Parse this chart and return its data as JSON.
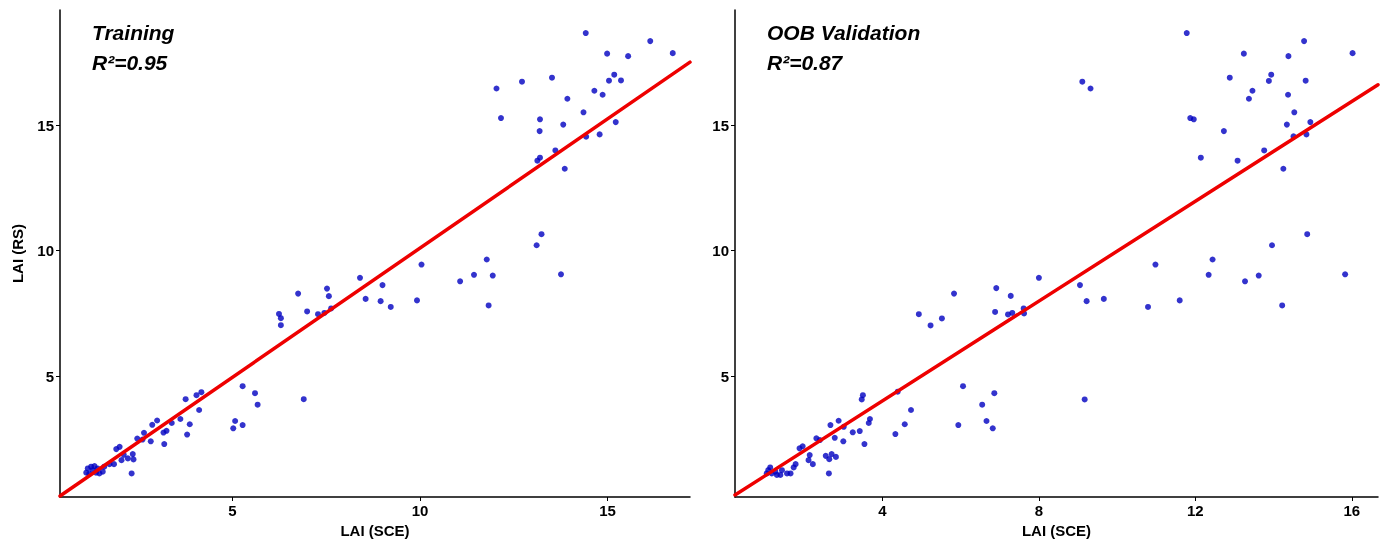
{
  "chart_data": [
    {
      "type": "scatter",
      "annotations": [
        "Training",
        "R²=0.95"
      ],
      "xlabel": "LAI (SCE)",
      "ylabel": "LAI (RS)",
      "xlim": [
        0.4,
        17.2
      ],
      "ylim": [
        0.18,
        19.6
      ],
      "xticks": [
        5,
        10,
        15
      ],
      "yticks": [
        5,
        10,
        15
      ],
      "grid": false,
      "series": [
        {
          "color": "#0000c0",
          "marker": "circle",
          "x": [
            14.42,
            16.14,
            14.99,
            15.55,
            16.74,
            12.04,
            12.72,
            13.52,
            15.18,
            15.04,
            15.36,
            14.65,
            14.87,
            13.93,
            12.16,
            13.2,
            13.19,
            13.82,
            14.36,
            15.22,
            14.43,
            14.79,
            13.61,
            13.2,
            13.13,
            13.86,
            13.24,
            13.11,
            10.04,
            11.78,
            11.44,
            11.07,
            11.94,
            13.76,
            9.92,
            11.83,
            9.0,
            8.95,
            9.22,
            8.4,
            6.75,
            7.52,
            7.57,
            8.55,
            6.99,
            6.24,
            6.29,
            6.29,
            7.28,
            7.45,
            7.63,
            6.9,
            5.27,
            5.6,
            5.67,
            5.07,
            5.02,
            5.27,
            4.17,
            4.04,
            3.75,
            4.11,
            3.61,
            3.86,
            3.79,
            3.38,
            2.99,
            2.86,
            3.24,
            3.16,
            3.18,
            2.82,
            2.64,
            2.6,
            2.46,
            1.99,
            1.9,
            2.1,
            2.04,
            2.21,
            2.34,
            2.36,
            2.31,
            1.84,
            1.72,
            1.58,
            1.54,
            1.45,
            1.1,
            1.18,
            1.27,
            1.36,
            1.23,
            1.14,
            1.32,
            1.4
          ],
          "values": [
            18.68,
            18.36,
            17.86,
            17.76,
            17.88,
            16.47,
            16.74,
            16.9,
            17.02,
            16.78,
            16.79,
            16.38,
            16.22,
            16.06,
            15.29,
            15.24,
            14.77,
            15.03,
            15.52,
            15.13,
            14.55,
            14.64,
            14.0,
            13.71,
            13.59,
            13.27,
            10.66,
            10.22,
            9.45,
            9.65,
            9.04,
            8.78,
            9.01,
            9.06,
            8.02,
            7.82,
            8.63,
            7.99,
            7.76,
            8.92,
            8.29,
            8.49,
            8.19,
            8.08,
            7.58,
            7.48,
            7.31,
            7.03,
            7.47,
            7.52,
            7.7,
            4.08,
            4.6,
            4.32,
            3.86,
            3.21,
            2.92,
            3.05,
            4.36,
            4.24,
            4.08,
            3.65,
            3.29,
            3.08,
            2.67,
            3.13,
            3.23,
            3.06,
            2.82,
            2.75,
            2.29,
            2.4,
            2.74,
            2.47,
            2.51,
            2.18,
            2.09,
            1.86,
            1.65,
            1.72,
            1.89,
            1.68,
            1.12,
            1.49,
            1.49,
            1.39,
            1.19,
            1.12,
            1.15,
            1.1,
            1.25,
            1.15,
            1.39,
            1.32,
            1.41,
            1.32
          ]
        },
        {
          "type": "line",
          "color": "#ee0000",
          "marker": "none",
          "line_style": "solid",
          "x": [
            0.4,
            17.2
          ],
          "values": [
            0.22,
            17.52
          ]
        }
      ]
    },
    {
      "type": "scatter",
      "annotations": [
        "OOB Validation",
        "R²=0.87"
      ],
      "xlabel": "LAI (SCE)",
      "xlim": [
        0.23,
        16.67
      ],
      "ylim": [
        0.18,
        19.6
      ],
      "xticks": [
        4,
        8,
        12,
        16
      ],
      "yticks": [
        5,
        10,
        15
      ],
      "grid": false,
      "series": [
        {
          "color": "#0000c0",
          "marker": "circle",
          "x": [
            11.78,
            9.11,
            9.32,
            12.88,
            11.87,
            11.96,
            12.73,
            12.14,
            10.98,
            12.44,
            12.34,
            11.6,
            10.79,
            9.66,
            9.05,
            9.22,
            9.17,
            8.0,
            6.91,
            7.28,
            6.88,
            7.21,
            7.32,
            7.61,
            7.62,
            5.83,
            4.93,
            5.23,
            5.52,
            6.06,
            6.86,
            6.55,
            4.73,
            6.66,
            6.82,
            5.94,
            4.57,
            4.33,
            4.39,
            3.5,
            3.47,
            3.68,
            3.65,
            3.42,
            3.24,
            3.54,
            3.01,
            3.0,
            2.88,
            2.67,
            2.78,
            2.81,
            2.7,
            2.64,
            2.55,
            2.63,
            2.31,
            2.4,
            2.14,
            2.11,
            2.22,
            1.88,
            1.96,
            1.78,
            1.73,
            1.65,
            1.56,
            1.43,
            1.39,
            1.13,
            1.17,
            1.04,
            1.26,
            1.3,
            1.08,
            13.08,
            13.24,
            13.37,
            13.46,
            13.76,
            13.88,
            13.94,
            14.38,
            14.37,
            14.25,
            14.34,
            14.53,
            14.51,
            14.78,
            14.82,
            14.94,
            14.84,
            16.02,
            14.86,
            13.96,
            13.62,
            13.27,
            15.83,
            14.22
          ],
          "values": [
            18.68,
            16.74,
            16.47,
            16.9,
            15.29,
            15.24,
            14.77,
            13.71,
            9.45,
            9.65,
            9.04,
            8.02,
            7.76,
            8.08,
            8.63,
            7.99,
            4.07,
            8.92,
            8.51,
            8.2,
            7.56,
            7.46,
            7.52,
            7.7,
            7.5,
            8.29,
            7.47,
            7.02,
            7.3,
            4.6,
            4.32,
            3.86,
            3.65,
            3.21,
            2.92,
            3.05,
            3.08,
            2.69,
            4.38,
            4.24,
            4.07,
            3.29,
            3.13,
            2.81,
            2.76,
            2.29,
            2.98,
            2.4,
            3.22,
            3.05,
            2.54,
            1.78,
            1.89,
            1.69,
            1.82,
            1.12,
            2.52,
            2.45,
            1.85,
            1.65,
            1.49,
            2.12,
            2.2,
            1.49,
            1.36,
            1.12,
            1.12,
            1.25,
            1.06,
            1.36,
            1.12,
            1.12,
            1.19,
            1.06,
            1.25,
            13.59,
            17.86,
            16.06,
            16.38,
            14.0,
            16.77,
            17.02,
            17.76,
            16.22,
            13.27,
            15.03,
            15.52,
            14.56,
            18.36,
            16.78,
            15.13,
            14.64,
            17.88,
            10.66,
            10.22,
            9.01,
            8.78,
            9.06,
            7.82
          ]
        },
        {
          "type": "line",
          "color": "#ee0000",
          "marker": "none",
          "line_style": "solid",
          "x": [
            0.23,
            16.67
          ],
          "values": [
            0.26,
            16.62
          ]
        }
      ]
    }
  ]
}
